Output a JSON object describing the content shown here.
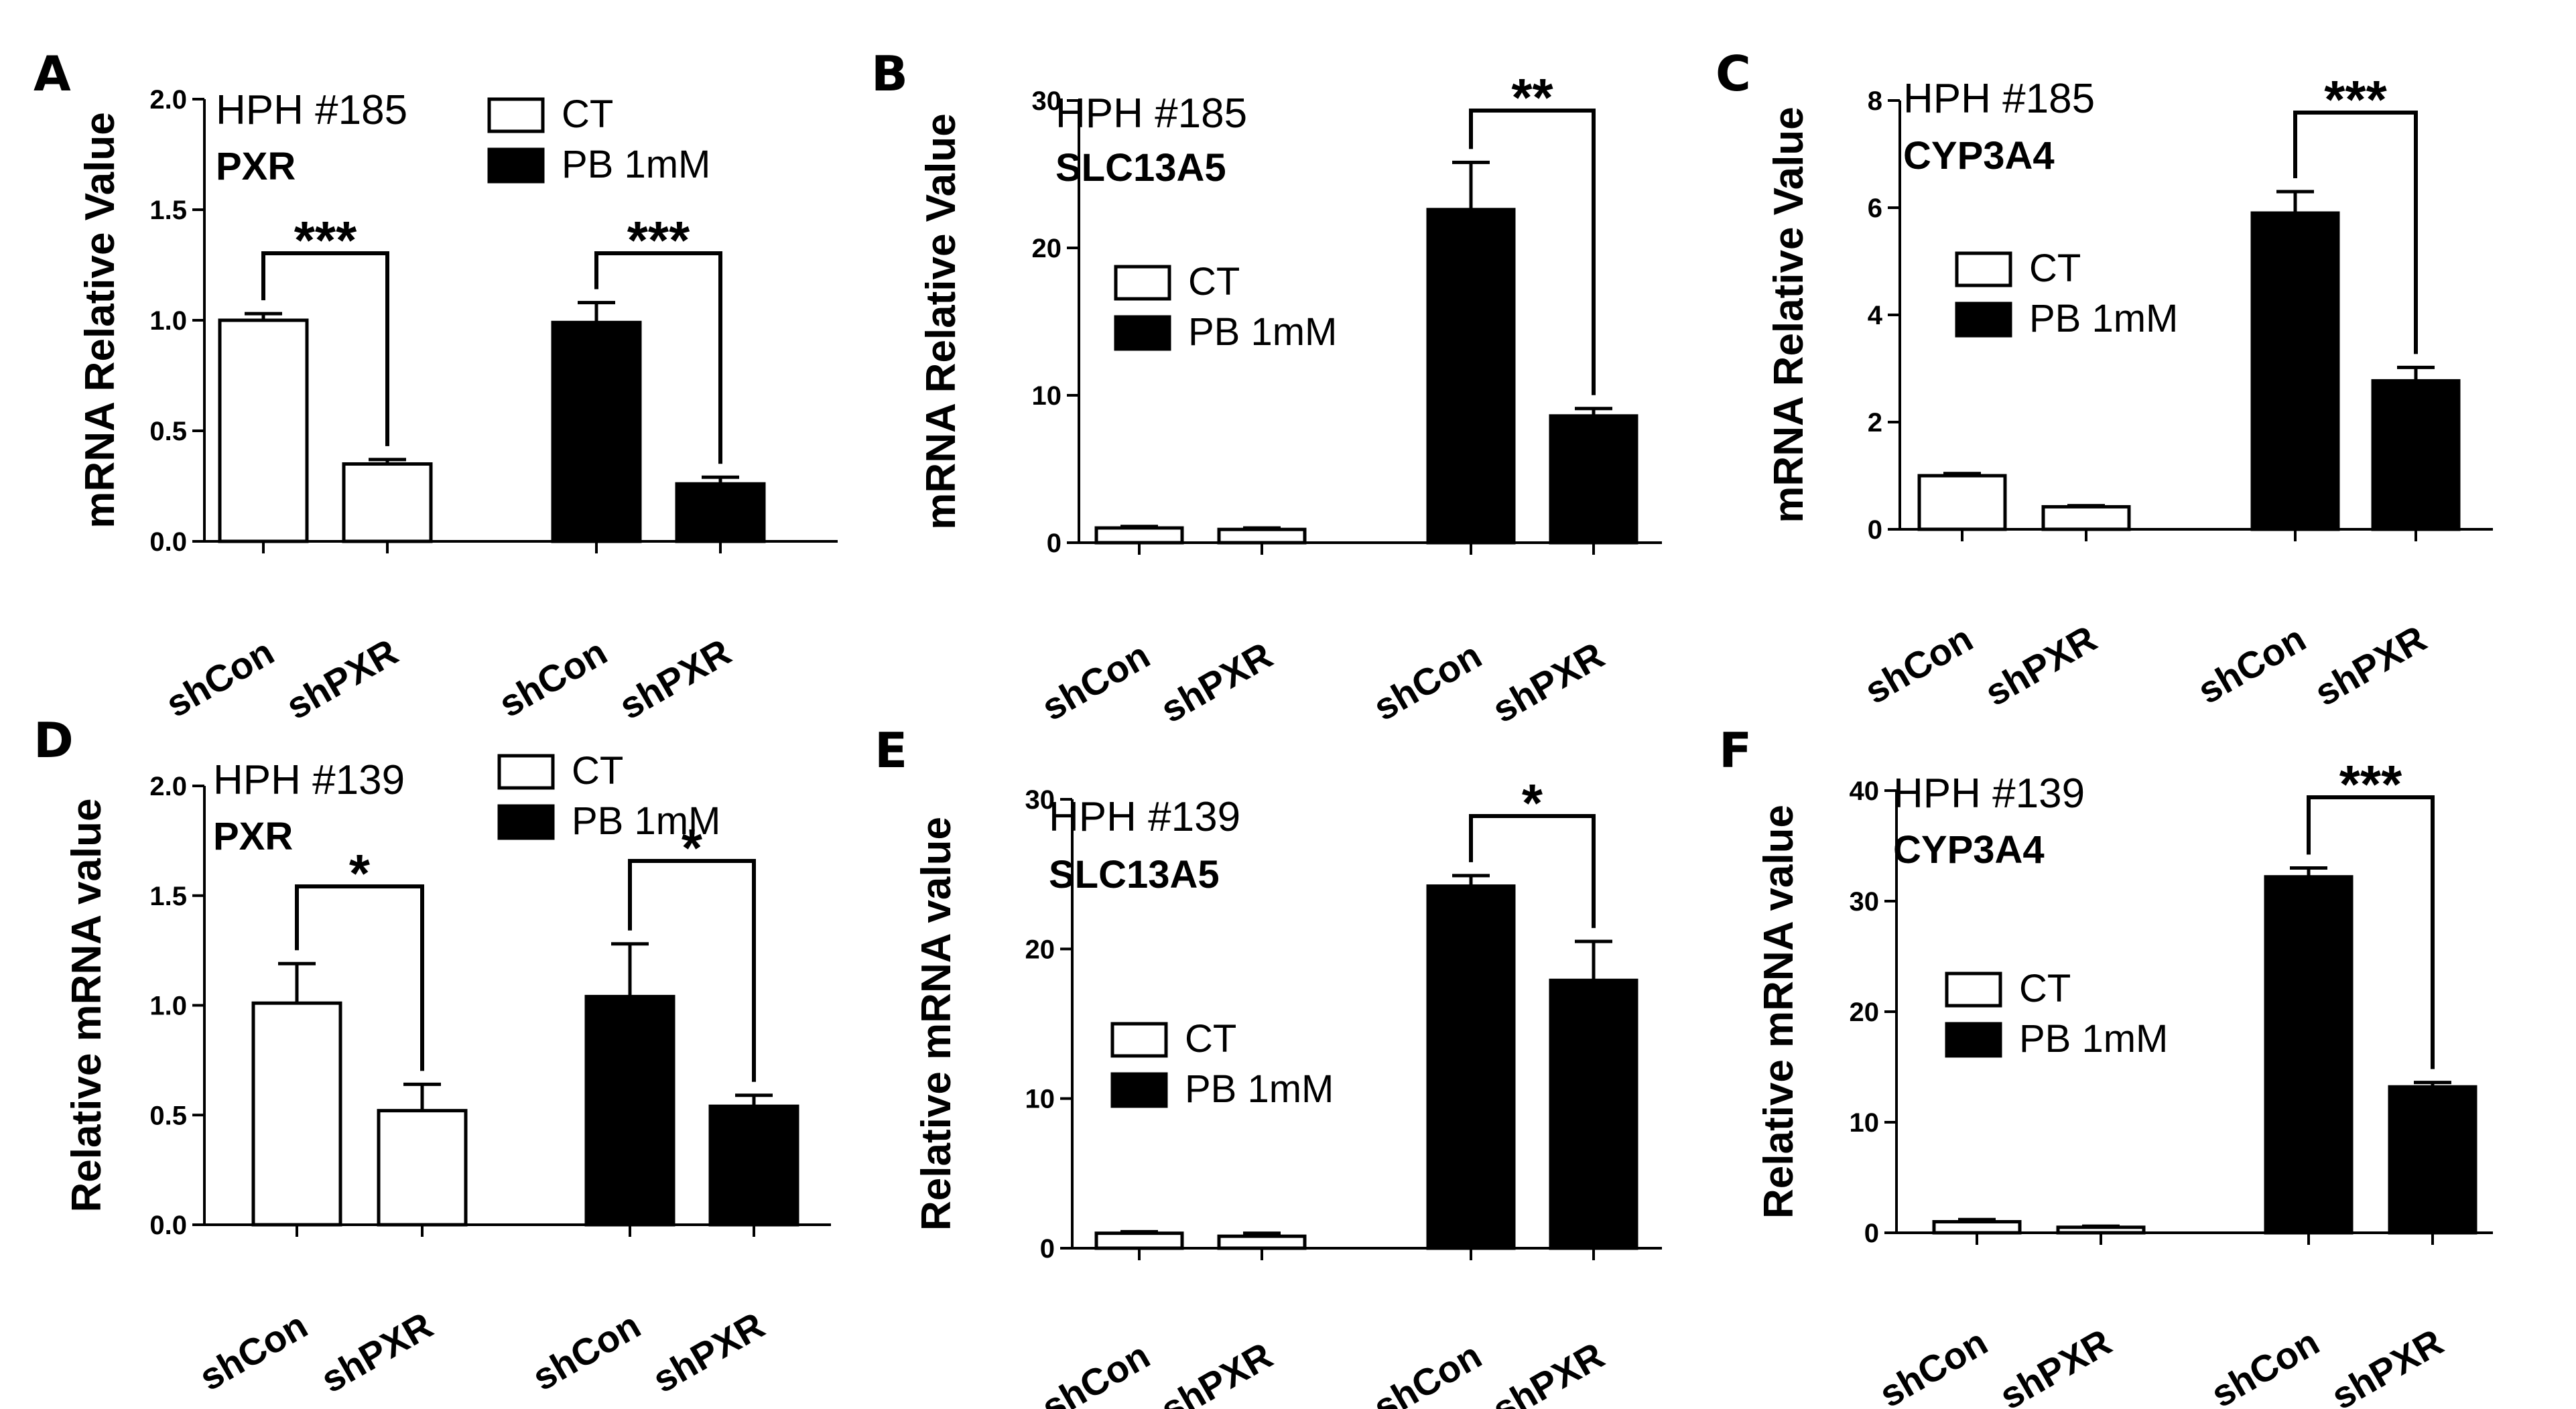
{
  "chart_data": [
    {
      "panel": "A",
      "type": "bar",
      "donor": "HPH #185",
      "gene": "PXR",
      "ylabel": "mRNA Relative Value",
      "ylim": [
        0,
        2.0
      ],
      "yticks": [
        "0.0",
        "0.5",
        "1.0",
        "1.5",
        "2.0"
      ],
      "legend": {
        "position": "top-right",
        "entries": [
          "CT",
          "PB 1mM"
        ]
      },
      "bars": [
        {
          "group": "CT",
          "category": "shCon",
          "value": 1.0,
          "error": 0.03
        },
        {
          "group": "CT",
          "category": "shPXR",
          "value": 0.35,
          "error": 0.02
        },
        {
          "group": "PB 1mM",
          "category": "shCon",
          "value": 0.99,
          "error": 0.09
        },
        {
          "group": "PB 1mM",
          "category": "shPXR",
          "value": 0.26,
          "error": 0.03
        }
      ],
      "significance": [
        {
          "pair": [
            0,
            1
          ],
          "label": "***"
        },
        {
          "pair": [
            2,
            3
          ],
          "label": "***"
        }
      ]
    },
    {
      "panel": "B",
      "type": "bar",
      "donor": "HPH #185",
      "gene": "SLC13A5",
      "ylabel": "mRNA Relative Value",
      "ylim": [
        0,
        30
      ],
      "yticks": [
        "0",
        "10",
        "20",
        "30"
      ],
      "legend": {
        "position": "middle-left",
        "entries": [
          "CT",
          "PB 1mM"
        ]
      },
      "bars": [
        {
          "group": "CT",
          "category": "shCon",
          "value": 1.0,
          "error": 0.1
        },
        {
          "group": "CT",
          "category": "shPXR",
          "value": 0.9,
          "error": 0.1
        },
        {
          "group": "PB 1mM",
          "category": "shCon",
          "value": 22.6,
          "error": 3.2
        },
        {
          "group": "PB 1mM",
          "category": "shPXR",
          "value": 8.6,
          "error": 0.5
        }
      ],
      "significance": [
        {
          "pair": [
            2,
            3
          ],
          "label": "**"
        }
      ]
    },
    {
      "panel": "C",
      "type": "bar",
      "donor": "HPH #185",
      "gene": "CYP3A4",
      "ylabel": "mRNA Relative Value",
      "ylim": [
        0,
        8
      ],
      "yticks": [
        "0",
        "2",
        "4",
        "6",
        "8"
      ],
      "legend": {
        "position": "middle-left",
        "entries": [
          "CT",
          "PB 1mM"
        ]
      },
      "bars": [
        {
          "group": "CT",
          "category": "shCon",
          "value": 1.0,
          "error": 0.04
        },
        {
          "group": "CT",
          "category": "shPXR",
          "value": 0.42,
          "error": 0.02
        },
        {
          "group": "PB 1mM",
          "category": "shCon",
          "value": 5.9,
          "error": 0.4
        },
        {
          "group": "PB 1mM",
          "category": "shPXR",
          "value": 2.77,
          "error": 0.25
        }
      ],
      "significance": [
        {
          "pair": [
            2,
            3
          ],
          "label": "***"
        }
      ]
    },
    {
      "panel": "D",
      "type": "bar",
      "donor": "HPH #139",
      "gene": "PXR",
      "ylabel": "Relative mRNA value",
      "ylim": [
        0,
        2.0
      ],
      "yticks": [
        "0.0",
        "0.5",
        "1.0",
        "1.5",
        "2.0"
      ],
      "legend": {
        "position": "top-right",
        "entries": [
          "CT",
          "PB 1mM"
        ]
      },
      "bars": [
        {
          "group": "CT",
          "category": "shCon",
          "value": 1.01,
          "error": 0.18
        },
        {
          "group": "CT",
          "category": "shPXR",
          "value": 0.52,
          "error": 0.12
        },
        {
          "group": "PB 1mM",
          "category": "shCon",
          "value": 1.04,
          "error": 0.24
        },
        {
          "group": "PB 1mM",
          "category": "shPXR",
          "value": 0.54,
          "error": 0.05
        }
      ],
      "significance": [
        {
          "pair": [
            0,
            1
          ],
          "label": "*"
        },
        {
          "pair": [
            2,
            3
          ],
          "label": "*"
        }
      ]
    },
    {
      "panel": "E",
      "type": "bar",
      "donor": "HPH #139",
      "gene": "SLC13A5",
      "ylabel": "Relative mRNA value",
      "ylim": [
        0,
        30
      ],
      "yticks": [
        "0",
        "10",
        "20",
        "30"
      ],
      "legend": {
        "position": "middle-left",
        "entries": [
          "CT",
          "PB 1mM"
        ]
      },
      "bars": [
        {
          "group": "CT",
          "category": "shCon",
          "value": 1.0,
          "error": 0.1
        },
        {
          "group": "CT",
          "category": "shPXR",
          "value": 0.8,
          "error": 0.2
        },
        {
          "group": "PB 1mM",
          "category": "shCon",
          "value": 24.2,
          "error": 0.7
        },
        {
          "group": "PB 1mM",
          "category": "shPXR",
          "value": 17.9,
          "error": 2.6
        }
      ],
      "significance": [
        {
          "pair": [
            2,
            3
          ],
          "label": "*"
        }
      ]
    },
    {
      "panel": "F",
      "type": "bar",
      "donor": "HPH #139",
      "gene": "CYP3A4",
      "ylabel": "Relative mRNA value",
      "ylim": [
        0,
        40
      ],
      "yticks": [
        "0",
        "10",
        "20",
        "30",
        "40"
      ],
      "legend": {
        "position": "middle-left",
        "entries": [
          "CT",
          "PB 1mM"
        ]
      },
      "bars": [
        {
          "group": "CT",
          "category": "shCon",
          "value": 1.0,
          "error": 0.2
        },
        {
          "group": "CT",
          "category": "shPXR",
          "value": 0.5,
          "error": 0.1
        },
        {
          "group": "PB 1mM",
          "category": "shCon",
          "value": 32.2,
          "error": 0.8
        },
        {
          "group": "PB 1mM",
          "category": "shPXR",
          "value": 13.2,
          "error": 0.4
        }
      ],
      "significance": [
        {
          "pair": [
            2,
            3
          ],
          "label": "***"
        }
      ]
    }
  ],
  "colors": {
    "ct_fill": "#ffffff",
    "pb_fill": "#000000",
    "stroke": "#000000"
  }
}
